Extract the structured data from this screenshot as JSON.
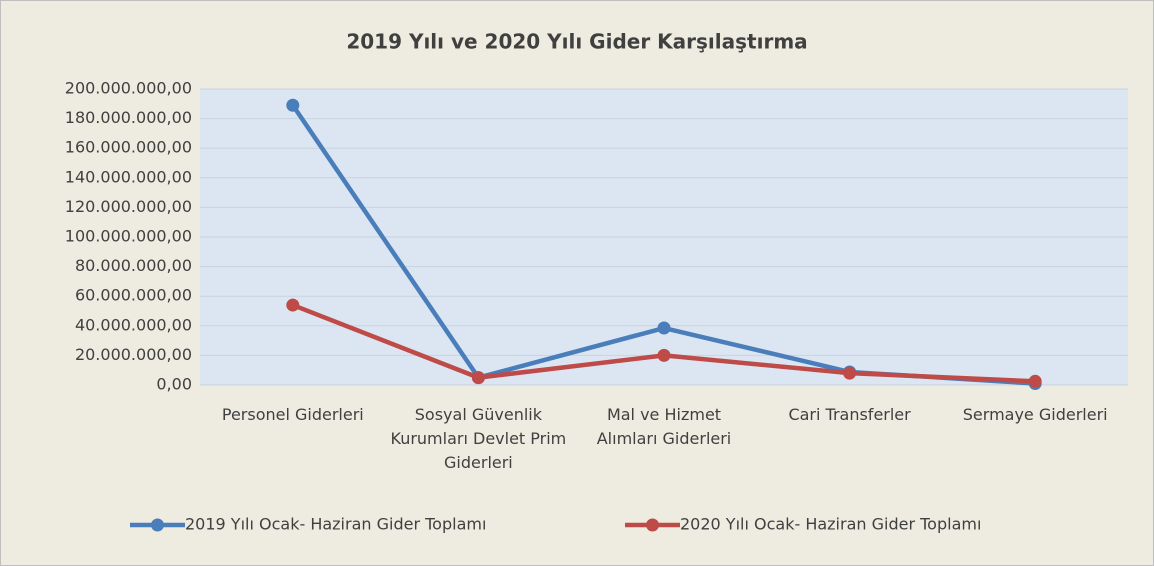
{
  "chart_data": {
    "type": "line",
    "title": "2019 Yılı ve 2020 Yılı Gider Karşılaştırma",
    "categories": [
      "Personel Giderleri",
      "Sosyal Güvenlik Kurumları Devlet Prim Giderleri",
      "Mal ve Hizmet Alımları Giderleri",
      "Cari Transferler",
      "Sermaye Giderleri"
    ],
    "series": [
      {
        "name": "2019 Yılı Ocak- Haziran Gider Toplamı",
        "color": "#4a7ebb",
        "values": [
          189000000,
          5000000,
          38500000,
          8800000,
          1000000
        ]
      },
      {
        "name": "2020 Yılı Ocak- Haziran Gider Toplamı",
        "color": "#be4b48",
        "values": [
          54000000,
          5000000,
          20000000,
          8000000,
          2500000
        ]
      }
    ],
    "ylim": [
      0,
      200000000
    ],
    "yticks": [
      {
        "value": 0,
        "label": "0,00"
      },
      {
        "value": 20000000,
        "label": "20.000.000,00"
      },
      {
        "value": 40000000,
        "label": "40.000.000,00"
      },
      {
        "value": 60000000,
        "label": "60.000.000,00"
      },
      {
        "value": 80000000,
        "label": "80.000.000,00"
      },
      {
        "value": 100000000,
        "label": "100.000.000,00"
      },
      {
        "value": 120000000,
        "label": "120.000.000,00"
      },
      {
        "value": 140000000,
        "label": "140.000.000,00"
      },
      {
        "value": 160000000,
        "label": "160.000.000,00"
      },
      {
        "value": 180000000,
        "label": "180.000.000,00"
      },
      {
        "value": 200000000,
        "label": "200.000.000,00"
      }
    ],
    "grid": true,
    "legend": "bottom"
  }
}
